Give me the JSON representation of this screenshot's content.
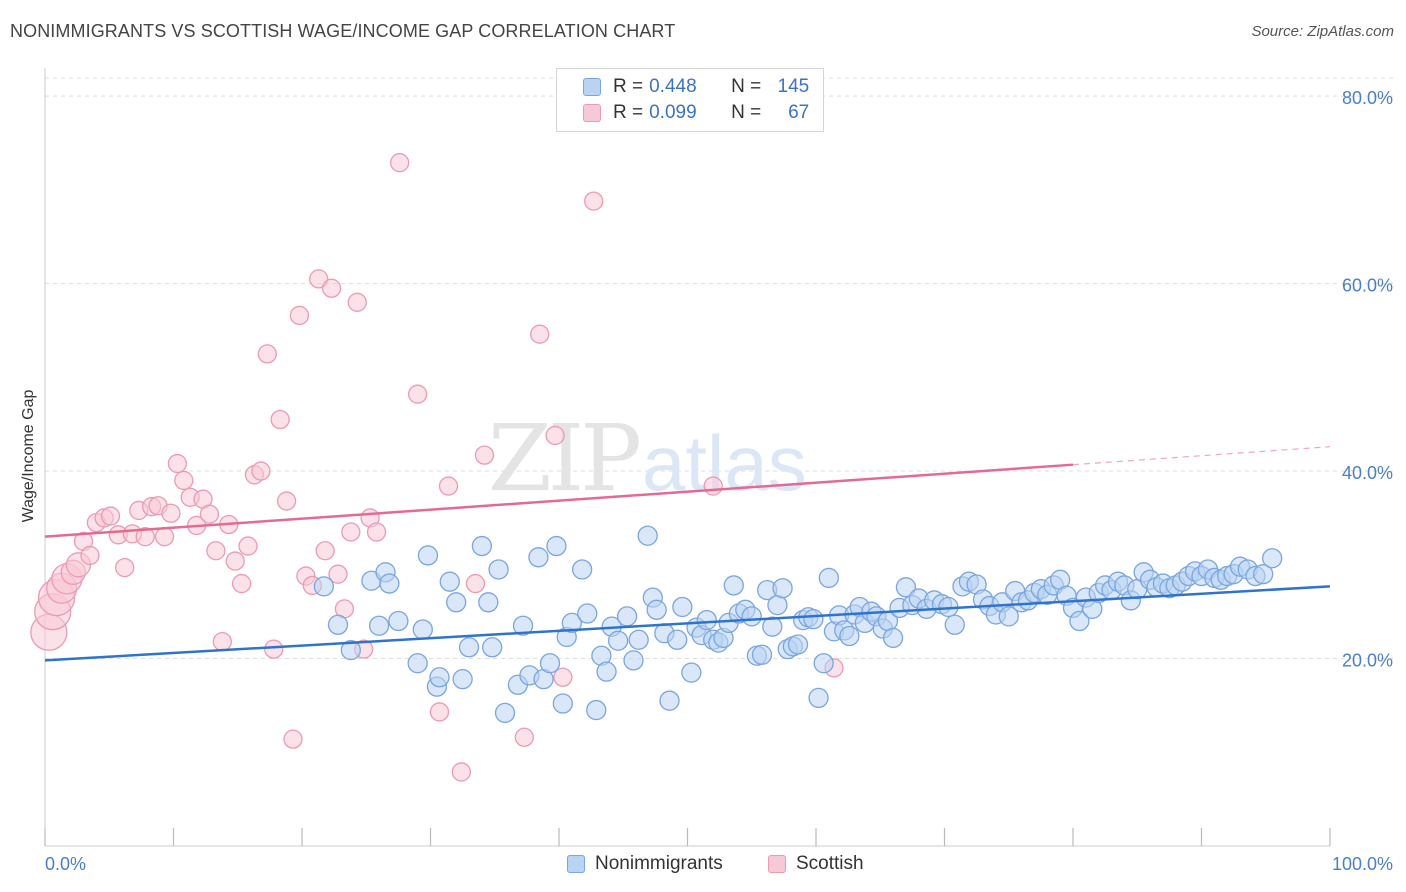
{
  "title": "NONIMMIGRANTS VS SCOTTISH WAGE/INCOME GAP CORRELATION CHART",
  "source": "Source: ZipAtlas.com",
  "watermark": {
    "zip": "ZIP",
    "atlas": "atlas"
  },
  "colors": {
    "blue_fill": "#b9d3f3",
    "blue_stroke": "#7aa6df",
    "blue_line": "#2f74cc",
    "pink_fill": "#f7c8d6",
    "pink_stroke": "#ec9ab4",
    "pink_line": "#e46a95",
    "grid": "#dddddd",
    "axis_label": "#4a7fc8"
  },
  "legend": {
    "rows": [
      {
        "r_label": "R =",
        "r_value": "0.448",
        "n_label": "N =",
        "n_value": "145"
      },
      {
        "r_label": "R =",
        "r_value": "0.099",
        "n_label": "N =",
        "n_value": "67"
      }
    ]
  },
  "bottom_legend": [
    "Nonimmigrants",
    "Scottish"
  ],
  "chart_data": {
    "type": "scatter",
    "xlabel": "",
    "ylabel": "Wage/Income Gap",
    "xlim": [
      0,
      100
    ],
    "ylim": [
      0,
      83
    ],
    "x_tick_labels": {
      "left": "0.0%",
      "right": "100.0%"
    },
    "y_ticks": [
      20,
      40,
      60,
      80
    ],
    "y_tick_labels": [
      "20.0%",
      "40.0%",
      "60.0%",
      "80.0%"
    ],
    "grid": true,
    "legend_position": "top-center",
    "series": [
      {
        "name": "Nonimmigrants",
        "trend": {
          "x0": 0,
          "y0": 19.8,
          "x1": 100,
          "y1": 27.7,
          "solid_until": 100
        },
        "points": [
          [
            21.7,
            27.7
          ],
          [
            22.8,
            23.6
          ],
          [
            23.8,
            20.9
          ],
          [
            25.4,
            28.3
          ],
          [
            26.0,
            23.5
          ],
          [
            26.5,
            29.2
          ],
          [
            26.8,
            28.0
          ],
          [
            27.5,
            24.0
          ],
          [
            29.0,
            19.5
          ],
          [
            29.4,
            23.1
          ],
          [
            29.8,
            31.0
          ],
          [
            30.5,
            17.0
          ],
          [
            30.7,
            18.0
          ],
          [
            31.5,
            28.2
          ],
          [
            32.0,
            26.0
          ],
          [
            32.5,
            17.8
          ],
          [
            33.0,
            21.2
          ],
          [
            34.0,
            32.0
          ],
          [
            34.5,
            26.0
          ],
          [
            34.8,
            21.2
          ],
          [
            35.3,
            29.5
          ],
          [
            35.8,
            14.2
          ],
          [
            36.8,
            17.2
          ],
          [
            37.2,
            23.5
          ],
          [
            37.7,
            18.2
          ],
          [
            38.4,
            30.8
          ],
          [
            38.8,
            17.8
          ],
          [
            39.3,
            19.5
          ],
          [
            39.8,
            32.0
          ],
          [
            40.3,
            15.2
          ],
          [
            40.6,
            22.3
          ],
          [
            41.0,
            23.8
          ],
          [
            41.8,
            29.5
          ],
          [
            42.2,
            24.8
          ],
          [
            42.9,
            14.5
          ],
          [
            43.3,
            20.3
          ],
          [
            43.7,
            18.6
          ],
          [
            44.1,
            23.4
          ],
          [
            44.6,
            21.9
          ],
          [
            45.3,
            24.5
          ],
          [
            45.8,
            19.8
          ],
          [
            46.2,
            22.0
          ],
          [
            46.9,
            33.1
          ],
          [
            47.3,
            26.5
          ],
          [
            47.6,
            25.2
          ],
          [
            48.2,
            22.7
          ],
          [
            48.6,
            15.5
          ],
          [
            49.2,
            22.0
          ],
          [
            49.6,
            25.5
          ],
          [
            50.3,
            18.5
          ],
          [
            50.7,
            23.3
          ],
          [
            51.1,
            22.5
          ],
          [
            51.5,
            24.1
          ],
          [
            52.0,
            22.0
          ],
          [
            52.4,
            21.7
          ],
          [
            52.8,
            22.2
          ],
          [
            53.2,
            23.8
          ],
          [
            53.6,
            27.8
          ],
          [
            54.0,
            24.8
          ],
          [
            54.5,
            25.2
          ],
          [
            55.0,
            24.5
          ],
          [
            55.4,
            20.3
          ],
          [
            55.8,
            20.4
          ],
          [
            56.2,
            27.3
          ],
          [
            56.6,
            23.4
          ],
          [
            57.0,
            25.7
          ],
          [
            57.4,
            27.5
          ],
          [
            57.8,
            21.0
          ],
          [
            58.2,
            21.3
          ],
          [
            58.6,
            21.5
          ],
          [
            59.0,
            24.1
          ],
          [
            59.4,
            24.4
          ],
          [
            59.8,
            24.2
          ],
          [
            60.2,
            15.8
          ],
          [
            60.6,
            19.5
          ],
          [
            61.0,
            28.6
          ],
          [
            61.4,
            22.9
          ],
          [
            61.8,
            24.6
          ],
          [
            62.2,
            23.0
          ],
          [
            62.6,
            22.4
          ],
          [
            63.0,
            24.7
          ],
          [
            63.4,
            25.5
          ],
          [
            63.8,
            23.8
          ],
          [
            64.3,
            25.0
          ],
          [
            64.7,
            24.5
          ],
          [
            65.2,
            23.2
          ],
          [
            65.6,
            24.0
          ],
          [
            66.0,
            22.2
          ],
          [
            66.5,
            25.4
          ],
          [
            67.0,
            27.6
          ],
          [
            67.5,
            25.7
          ],
          [
            68.0,
            26.4
          ],
          [
            68.6,
            25.3
          ],
          [
            69.2,
            26.2
          ],
          [
            69.8,
            25.8
          ],
          [
            70.3,
            25.5
          ],
          [
            70.8,
            23.6
          ],
          [
            71.4,
            27.7
          ],
          [
            71.9,
            28.2
          ],
          [
            72.5,
            27.9
          ],
          [
            73.0,
            26.3
          ],
          [
            73.5,
            25.6
          ],
          [
            74.0,
            24.7
          ],
          [
            74.5,
            26.0
          ],
          [
            75.0,
            24.5
          ],
          [
            75.5,
            27.2
          ],
          [
            76.0,
            26.0
          ],
          [
            76.5,
            26.2
          ],
          [
            77.0,
            27.0
          ],
          [
            77.5,
            27.4
          ],
          [
            78.0,
            26.8
          ],
          [
            78.5,
            27.8
          ],
          [
            79.0,
            28.4
          ],
          [
            79.5,
            26.7
          ],
          [
            80.0,
            25.4
          ],
          [
            80.5,
            24.0
          ],
          [
            81.0,
            26.5
          ],
          [
            81.5,
            25.3
          ],
          [
            82.0,
            27.0
          ],
          [
            82.5,
            27.8
          ],
          [
            83.0,
            27.3
          ],
          [
            83.5,
            28.2
          ],
          [
            84.0,
            27.8
          ],
          [
            84.5,
            26.2
          ],
          [
            85.0,
            27.4
          ],
          [
            85.5,
            29.2
          ],
          [
            86.0,
            28.4
          ],
          [
            86.5,
            27.6
          ],
          [
            87.0,
            28.0
          ],
          [
            87.5,
            27.5
          ],
          [
            88.0,
            27.8
          ],
          [
            88.5,
            28.2
          ],
          [
            89.0,
            28.8
          ],
          [
            89.5,
            29.3
          ],
          [
            90.0,
            28.8
          ],
          [
            90.5,
            29.5
          ],
          [
            91.0,
            28.6
          ],
          [
            91.5,
            28.4
          ],
          [
            92.0,
            28.8
          ],
          [
            92.5,
            29.0
          ],
          [
            93.0,
            29.8
          ],
          [
            93.6,
            29.5
          ],
          [
            94.2,
            28.8
          ],
          [
            94.8,
            29.0
          ],
          [
            95.5,
            30.7
          ]
        ]
      },
      {
        "name": "Scottish",
        "trend": {
          "x0": 0,
          "y0": 33.0,
          "x1": 100,
          "y1": 42.6,
          "solid_until": 80
        },
        "points": [
          [
            0.3,
            22.8
          ],
          [
            0.6,
            25.0
          ],
          [
            0.9,
            26.5
          ],
          [
            1.3,
            27.5
          ],
          [
            1.7,
            28.5
          ],
          [
            2.2,
            29.2
          ],
          [
            2.6,
            30.0
          ],
          [
            3.0,
            32.5
          ],
          [
            3.5,
            31.0
          ],
          [
            4.0,
            34.5
          ],
          [
            4.6,
            35.0
          ],
          [
            5.1,
            35.2
          ],
          [
            5.7,
            33.2
          ],
          [
            6.2,
            29.7
          ],
          [
            6.8,
            33.3
          ],
          [
            7.3,
            35.8
          ],
          [
            7.8,
            33.0
          ],
          [
            8.3,
            36.2
          ],
          [
            8.8,
            36.3
          ],
          [
            9.3,
            33.0
          ],
          [
            9.8,
            35.5
          ],
          [
            10.3,
            40.8
          ],
          [
            10.8,
            39.0
          ],
          [
            11.3,
            37.2
          ],
          [
            11.8,
            34.2
          ],
          [
            12.3,
            37.0
          ],
          [
            12.8,
            35.4
          ],
          [
            13.3,
            31.5
          ],
          [
            13.8,
            21.8
          ],
          [
            14.3,
            34.3
          ],
          [
            14.8,
            30.4
          ],
          [
            15.3,
            28.0
          ],
          [
            15.8,
            32.0
          ],
          [
            16.3,
            39.6
          ],
          [
            16.8,
            40.0
          ],
          [
            17.3,
            52.5
          ],
          [
            17.8,
            21.0
          ],
          [
            18.3,
            45.5
          ],
          [
            18.8,
            36.8
          ],
          [
            19.3,
            11.4
          ],
          [
            19.8,
            56.6
          ],
          [
            20.3,
            28.8
          ],
          [
            20.8,
            27.8
          ],
          [
            21.3,
            60.5
          ],
          [
            21.8,
            31.5
          ],
          [
            22.3,
            59.5
          ],
          [
            22.8,
            29.0
          ],
          [
            23.3,
            25.3
          ],
          [
            23.8,
            33.5
          ],
          [
            24.3,
            58.0
          ],
          [
            24.8,
            21.0
          ],
          [
            25.3,
            35.0
          ],
          [
            25.8,
            33.5
          ],
          [
            27.6,
            72.9
          ],
          [
            29.0,
            48.2
          ],
          [
            30.7,
            14.3
          ],
          [
            31.4,
            38.4
          ],
          [
            32.4,
            7.9
          ],
          [
            33.5,
            28.0
          ],
          [
            34.2,
            41.7
          ],
          [
            37.3,
            11.6
          ],
          [
            38.5,
            54.6
          ],
          [
            39.7,
            43.8
          ],
          [
            40.3,
            18.0
          ],
          [
            42.7,
            68.8
          ],
          [
            52.0,
            38.4
          ],
          [
            61.4,
            19.0
          ]
        ]
      }
    ]
  }
}
